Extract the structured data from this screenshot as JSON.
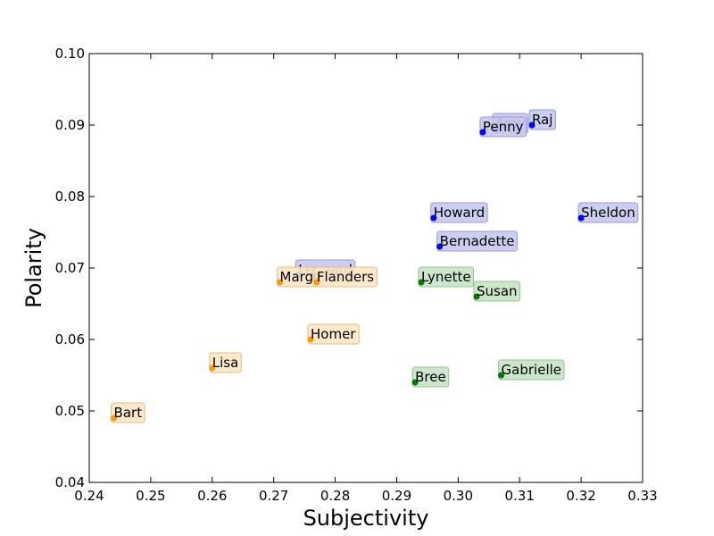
{
  "chart_data": {
    "type": "scatter",
    "title": "",
    "xlabel": "Subjectivity",
    "ylabel": "Polarity",
    "xlim": [
      0.24,
      0.33
    ],
    "ylim": [
      0.04,
      0.1
    ],
    "xticks": [
      "0.24",
      "0.25",
      "0.26",
      "0.27",
      "0.28",
      "0.29",
      "0.30",
      "0.31",
      "0.32",
      "0.33"
    ],
    "yticks": [
      "0.04",
      "0.05",
      "0.06",
      "0.07",
      "0.08",
      "0.09",
      "0.10"
    ],
    "grid": false,
    "series": [
      {
        "color": "#0000ff",
        "box_color": "#c8c8f0",
        "box_edge": "#9a9ad8",
        "points": [
          {
            "label": "Amy",
            "x": 0.306,
            "y": 0.0895
          },
          {
            "label": "Raj",
            "x": 0.312,
            "y": 0.09
          },
          {
            "label": "Penny",
            "x": 0.304,
            "y": 0.089
          },
          {
            "label": "Howard",
            "x": 0.296,
            "y": 0.077
          },
          {
            "label": "Sheldon",
            "x": 0.32,
            "y": 0.077
          },
          {
            "label": "Bernadette",
            "x": 0.297,
            "y": 0.073
          },
          {
            "label": "Leonard",
            "x": 0.274,
            "y": 0.069
          }
        ]
      },
      {
        "color": "#ff9900",
        "box_color": "#fde6c4",
        "box_edge": "#e0c090",
        "points": [
          {
            "label": "Marge",
            "x": 0.271,
            "y": 0.068
          },
          {
            "label": "Flanders",
            "x": 0.277,
            "y": 0.068
          },
          {
            "label": "Homer",
            "x": 0.276,
            "y": 0.06
          },
          {
            "label": "Lisa",
            "x": 0.26,
            "y": 0.056
          },
          {
            "label": "Bart",
            "x": 0.244,
            "y": 0.049
          }
        ]
      },
      {
        "color": "#007700",
        "box_color": "#c6e3c6",
        "box_edge": "#94c494",
        "points": [
          {
            "label": "Lynette",
            "x": 0.294,
            "y": 0.068
          },
          {
            "label": "Susan",
            "x": 0.303,
            "y": 0.066
          },
          {
            "label": "Gabrielle",
            "x": 0.307,
            "y": 0.055
          },
          {
            "label": "Bree",
            "x": 0.293,
            "y": 0.054
          }
        ]
      }
    ]
  }
}
